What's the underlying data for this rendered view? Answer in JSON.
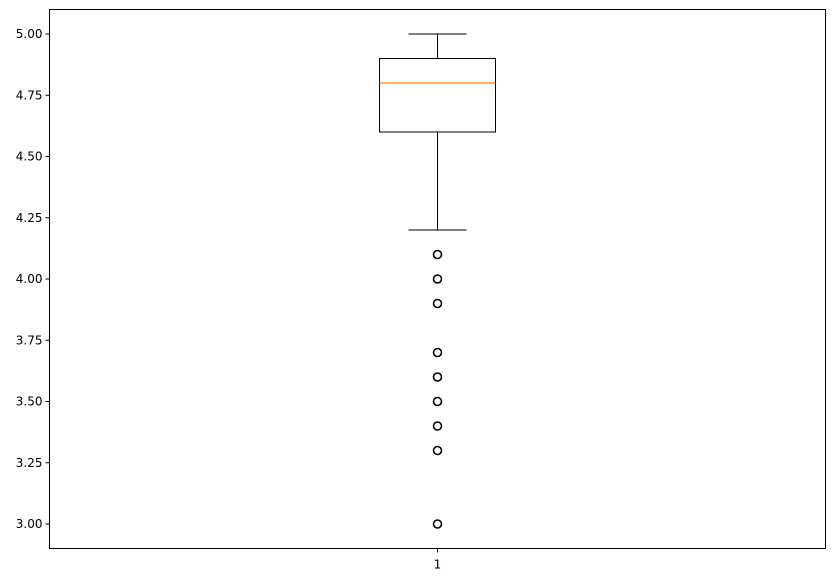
{
  "chart_data": {
    "type": "box",
    "categories": [
      "1"
    ],
    "box": {
      "whisker_low": 4.2,
      "q1": 4.6,
      "median": 4.8,
      "q3": 4.9,
      "whisker_high": 5.0
    },
    "outliers": [
      4.1,
      4.0,
      3.9,
      3.7,
      3.6,
      3.5,
      3.4,
      3.3,
      3.0
    ],
    "ylim": [
      2.9,
      5.1
    ],
    "yticks": [
      3.0,
      3.25,
      3.5,
      3.75,
      4.0,
      4.25,
      4.5,
      4.75,
      5.0
    ],
    "ytick_labels": [
      "3.00",
      "3.25",
      "3.50",
      "3.75",
      "4.00",
      "4.25",
      "4.50",
      "4.75",
      "5.00"
    ],
    "title": "",
    "xlabel": "",
    "ylabel": "",
    "grid": false,
    "colors": {
      "box": "#000000",
      "median": "#ff7f0e",
      "outlier_edge": "#000000"
    }
  }
}
